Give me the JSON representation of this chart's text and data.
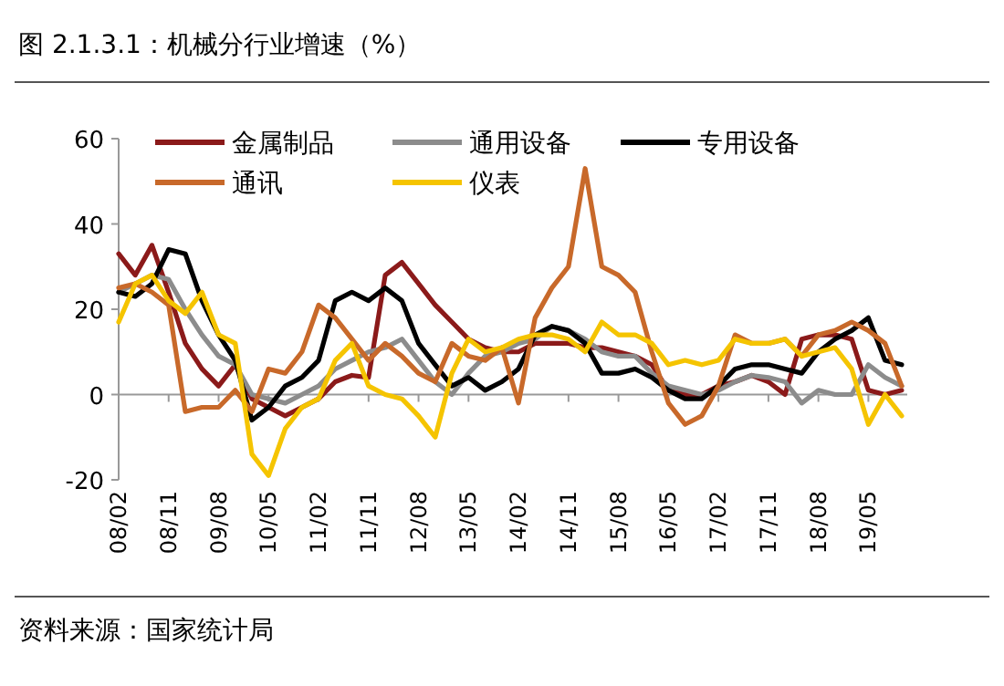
{
  "chart_data": {
    "type": "line",
    "title": "图 2.1.3.1：机械分行业增速（%）",
    "annotations": [
      "资料来源：国家统计局"
    ],
    "x": [
      "2008-02",
      "2008-05",
      "2008-08",
      "2008-11",
      "2009-02",
      "2009-05",
      "2009-08",
      "2009-11",
      "2010-02",
      "2010-05",
      "2010-08",
      "2010-11",
      "2011-02",
      "2011-05",
      "2011-08",
      "2011-11",
      "2012-02",
      "2012-05",
      "2012-08",
      "2012-11",
      "2013-02",
      "2013-05",
      "2013-08",
      "2013-11",
      "2014-02",
      "2014-05",
      "2014-08",
      "2014-11",
      "2015-02",
      "2015-05",
      "2015-08",
      "2015-11",
      "2016-02",
      "2016-05",
      "2016-08",
      "2016-11",
      "2017-02",
      "2017-05",
      "2017-08",
      "2017-11",
      "2018-02",
      "2018-05",
      "2018-08",
      "2018-11",
      "2019-02",
      "2019-05",
      "2019-08",
      "2019-11"
    ],
    "series": [
      {
        "name": "金属制品",
        "color": "#8b1a1a",
        "values": [
          33,
          28,
          35,
          24,
          12,
          6,
          2,
          7,
          -1,
          -3,
          -5,
          -3,
          -1,
          3,
          4.5,
          4,
          28,
          31,
          26,
          21,
          17,
          13,
          11,
          10,
          10,
          12,
          12,
          12,
          11,
          11,
          10,
          9,
          7,
          1,
          0,
          0,
          2,
          3,
          4.5,
          3,
          0,
          13,
          14,
          14,
          13,
          1,
          0,
          1
        ]
      },
      {
        "name": "通用设备",
        "color": "#8c8c8c",
        "values": [
          24,
          26,
          28,
          27,
          20,
          14,
          9,
          7,
          0,
          -1,
          -2,
          0,
          2,
          6,
          8,
          10,
          11,
          13,
          8,
          3,
          0,
          5,
          9,
          10,
          12,
          13,
          16,
          15,
          13,
          10,
          9,
          9,
          5,
          2,
          1,
          0,
          1,
          3,
          4.5,
          4,
          3,
          -2,
          1,
          0,
          0,
          7,
          4,
          2
        ]
      },
      {
        "name": "专用设备",
        "color": "#000000",
        "values": [
          24,
          23,
          26,
          34,
          33,
          22,
          14,
          8,
          -6,
          -3,
          2,
          4,
          8,
          22,
          24,
          22,
          25,
          22,
          12,
          7,
          2,
          4,
          1,
          3,
          6,
          14,
          16,
          15,
          12,
          5,
          5,
          6,
          4,
          1,
          -1,
          -1,
          2,
          6,
          7,
          7,
          6,
          5,
          10,
          13,
          15,
          18,
          8,
          7
        ]
      },
      {
        "name": "通讯",
        "color": "#c8692a",
        "values": [
          25,
          26,
          24,
          21,
          -4,
          -3,
          -3,
          1,
          -4,
          6,
          5,
          10,
          21,
          18,
          13,
          8,
          12,
          9,
          5,
          3,
          12,
          9,
          8,
          11,
          -2,
          18,
          25,
          30,
          53,
          30,
          28,
          24,
          10,
          -2,
          -7,
          -5,
          2,
          14,
          12,
          12,
          13,
          9,
          14,
          15,
          17,
          15,
          12,
          2
        ]
      },
      {
        "name": "仪表",
        "color": "#f5c400",
        "values": [
          17,
          26,
          28,
          22,
          19,
          24,
          14,
          12,
          -14,
          -19,
          -8,
          -3,
          -1,
          8,
          12,
          2,
          0,
          -1,
          -5,
          -10,
          5,
          13,
          10,
          11,
          13,
          14,
          14,
          13,
          10,
          17,
          14,
          14,
          12,
          7,
          8,
          7,
          8,
          13,
          12,
          12,
          13,
          9,
          10,
          11,
          6,
          -7,
          0,
          -5
        ]
      }
    ],
    "xlim": [
      "2008-02",
      "2019-12"
    ],
    "ylim": [
      -20,
      60
    ],
    "yticks": [
      -20,
      0,
      20,
      40,
      60
    ],
    "xticks": [
      {
        "value": "2008-02",
        "label": "08/02"
      },
      {
        "value": "2008-11",
        "label": "08/11"
      },
      {
        "value": "2009-08",
        "label": "09/08"
      },
      {
        "value": "2010-05",
        "label": "10/05"
      },
      {
        "value": "2011-02",
        "label": "11/02"
      },
      {
        "value": "2011-11",
        "label": "11/11"
      },
      {
        "value": "2012-08",
        "label": "12/08"
      },
      {
        "value": "2013-05",
        "label": "13/05"
      },
      {
        "value": "2014-02",
        "label": "14/02"
      },
      {
        "value": "2014-11",
        "label": "14/11"
      },
      {
        "value": "2015-08",
        "label": "15/08"
      },
      {
        "value": "2016-05",
        "label": "16/05"
      },
      {
        "value": "2017-02",
        "label": "17/02"
      },
      {
        "value": "2017-11",
        "label": "17/11"
      },
      {
        "value": "2018-08",
        "label": "18/08"
      },
      {
        "value": "2019-05",
        "label": "19/05"
      }
    ],
    "legend": "top"
  }
}
